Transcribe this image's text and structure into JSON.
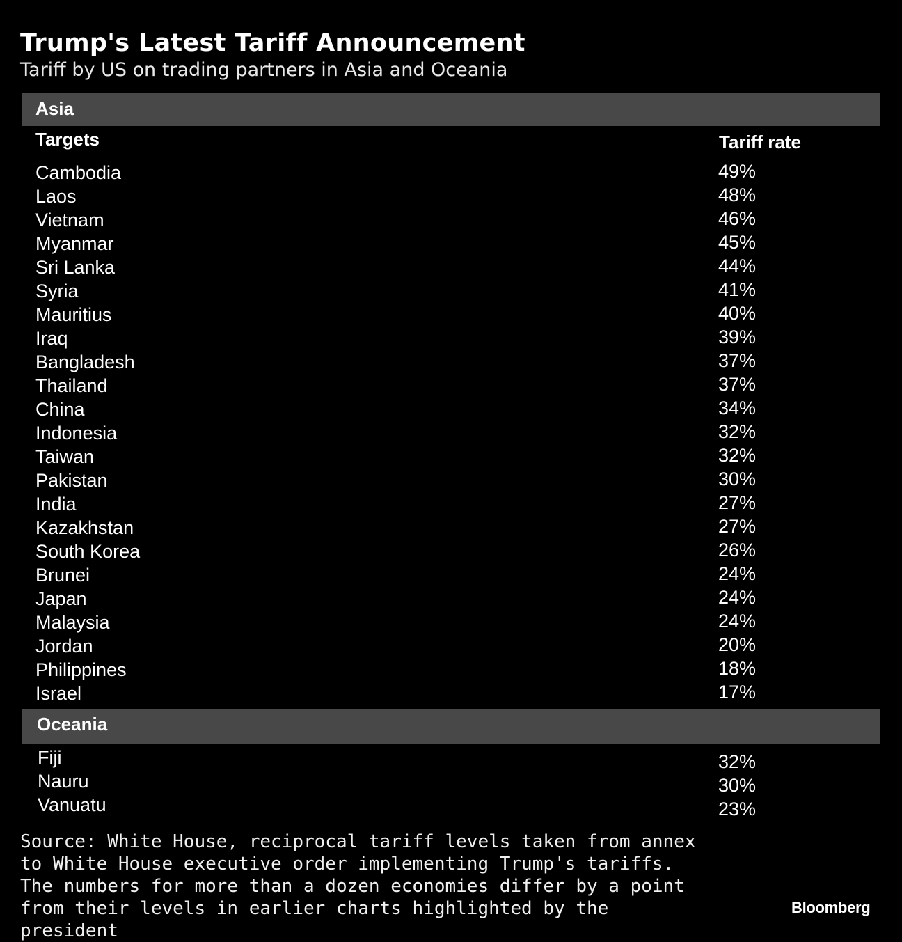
{
  "title": "Trump's Latest Tariff Announcement",
  "subtitle": "Tariff by US on trading partners in Asia and Oceania",
  "columns": {
    "target": "Targets",
    "rate": "Tariff rate"
  },
  "source": "Source: White House, reciprocal tariff levels taken from annex to White House executive order implementing Trump's tariffs. The numbers for more than a dozen economies differ by a point from their levels in earlier charts highlighted by the president",
  "brand": "Bloomberg",
  "colors": {
    "background": "#000000",
    "section_bar": "#484848",
    "text": "#ffffff"
  },
  "chart_data": {
    "type": "table",
    "title": "Trump's Latest Tariff Announcement",
    "subtitle": "Tariff by US on trading partners in Asia and Oceania",
    "columns": [
      "Targets",
      "Tariff rate"
    ],
    "sections": [
      {
        "name": "Asia",
        "rows": [
          {
            "target": "Cambodia",
            "rate": "49%"
          },
          {
            "target": "Laos",
            "rate": "48%"
          },
          {
            "target": "Vietnam",
            "rate": "46%"
          },
          {
            "target": "Myanmar",
            "rate": "45%"
          },
          {
            "target": "Sri Lanka",
            "rate": "44%"
          },
          {
            "target": "Syria",
            "rate": "41%"
          },
          {
            "target": "Mauritius",
            "rate": "40%"
          },
          {
            "target": "Iraq",
            "rate": "39%"
          },
          {
            "target": "Bangladesh",
            "rate": "37%"
          },
          {
            "target": "Thailand",
            "rate": "37%"
          },
          {
            "target": "China",
            "rate": "34%"
          },
          {
            "target": "Indonesia",
            "rate": "32%"
          },
          {
            "target": "Taiwan",
            "rate": "32%"
          },
          {
            "target": "Pakistan",
            "rate": "30%"
          },
          {
            "target": "India",
            "rate": "27%"
          },
          {
            "target": "Kazakhstan",
            "rate": "27%"
          },
          {
            "target": "South Korea",
            "rate": "26%"
          },
          {
            "target": "Brunei",
            "rate": "24%"
          },
          {
            "target": "Japan",
            "rate": "24%"
          },
          {
            "target": "Malaysia",
            "rate": "24%"
          },
          {
            "target": "Jordan",
            "rate": "20%"
          },
          {
            "target": "Philippines",
            "rate": "18%"
          },
          {
            "target": "Israel",
            "rate": "17%"
          }
        ]
      },
      {
        "name": "Oceania",
        "rows": [
          {
            "target": "Fiji",
            "rate": "32%"
          },
          {
            "target": "Nauru",
            "rate": "30%"
          },
          {
            "target": "Vanuatu",
            "rate": "23%"
          }
        ]
      }
    ]
  }
}
